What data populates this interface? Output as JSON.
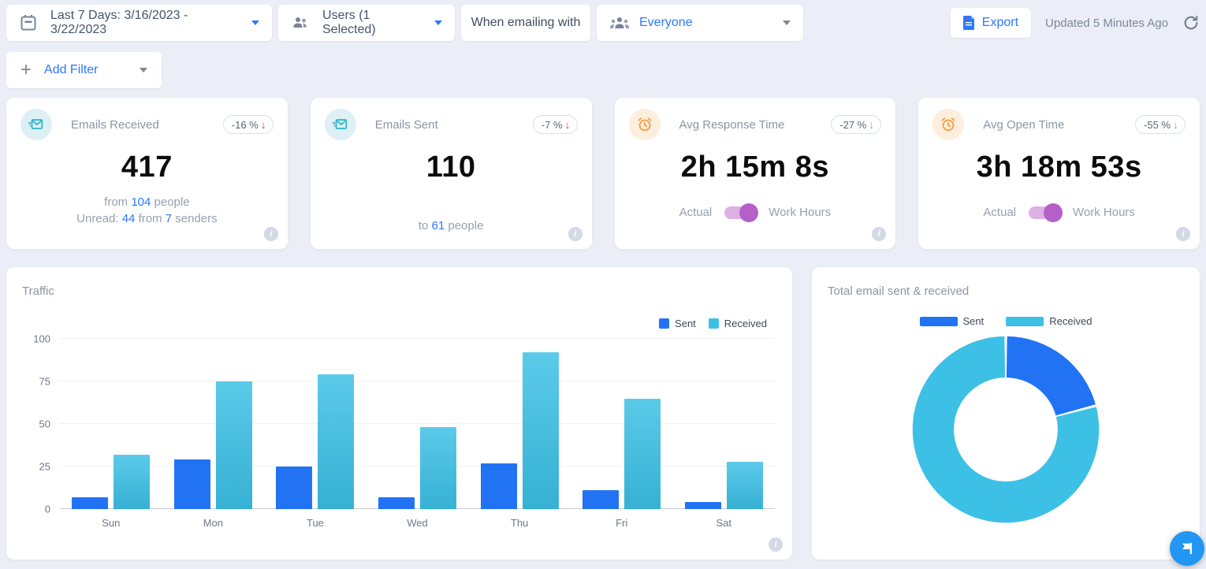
{
  "toolbar": {
    "date_filter_label": "Last 7 Days: 3/16/2023 - 3/22/2023",
    "users_filter_label": "Users (1 Selected)",
    "when_emailing_with_label": "When emailing with",
    "audience_label": "Everyone",
    "export_label": "Export",
    "updated_text": "Updated 5 Minutes Ago"
  },
  "filter_bar": {
    "add_filter_label": "Add Filter"
  },
  "stat_cards": {
    "emails_received": {
      "title": "Emails Received",
      "change": "-16 %",
      "value": "417",
      "sub1": {
        "prefix": "from ",
        "link": "104",
        "suffix": " people"
      },
      "sub2": {
        "prefix": "Unread: ",
        "link1": "44",
        "mid": " from ",
        "link2": "7",
        "suffix": " senders"
      }
    },
    "emails_sent": {
      "title": "Emails Sent",
      "change": "-7 %",
      "value": "110",
      "sub1": {
        "prefix": "to ",
        "link": "61",
        "suffix": " people"
      }
    },
    "avg_response_time": {
      "title": "Avg Response Time",
      "change": "-27 %",
      "value": "2h 15m 8s",
      "toggle_left": "Actual",
      "toggle_right": "Work Hours",
      "toggle_state": "right"
    },
    "avg_open_time": {
      "title": "Avg Open Time",
      "change": "-55 %",
      "value": "3h 18m 53s",
      "toggle_left": "Actual",
      "toggle_right": "Work Hours",
      "toggle_state": "right"
    }
  },
  "colors": {
    "accent_blue": "#2979ff",
    "sent_blue": "#2173f4",
    "received_cyan": "#3cc0e5",
    "toggle_purple": "#b55fc9",
    "trend_down_bad": "#e83d35",
    "trend_down_good": "#7cc576"
  },
  "chart_data": [
    {
      "type": "bar",
      "title": "Traffic",
      "categories": [
        "Sun",
        "Mon",
        "Tue",
        "Wed",
        "Thu",
        "Fri",
        "Sat"
      ],
      "series": [
        {
          "name": "Sent",
          "color": "#2173f4",
          "values": [
            7,
            29,
            25,
            7,
            27,
            11,
            4
          ]
        },
        {
          "name": "Received",
          "color": "#3cc0e5",
          "values": [
            32,
            75,
            79,
            48,
            92,
            65,
            28
          ]
        }
      ],
      "xlabel": "",
      "ylabel": "",
      "ylim": [
        0,
        100
      ],
      "yticks": [
        0,
        25,
        50,
        75,
        100
      ],
      "grid": true,
      "legend_position": "top-right"
    },
    {
      "type": "pie",
      "subtype": "donut",
      "title": "Total email sent & received",
      "slices": [
        {
          "label": "Sent",
          "value": 110,
          "color": "#2173f4"
        },
        {
          "label": "Received",
          "value": 417,
          "color": "#3cc0e5"
        }
      ],
      "legend_position": "top-center"
    }
  ]
}
